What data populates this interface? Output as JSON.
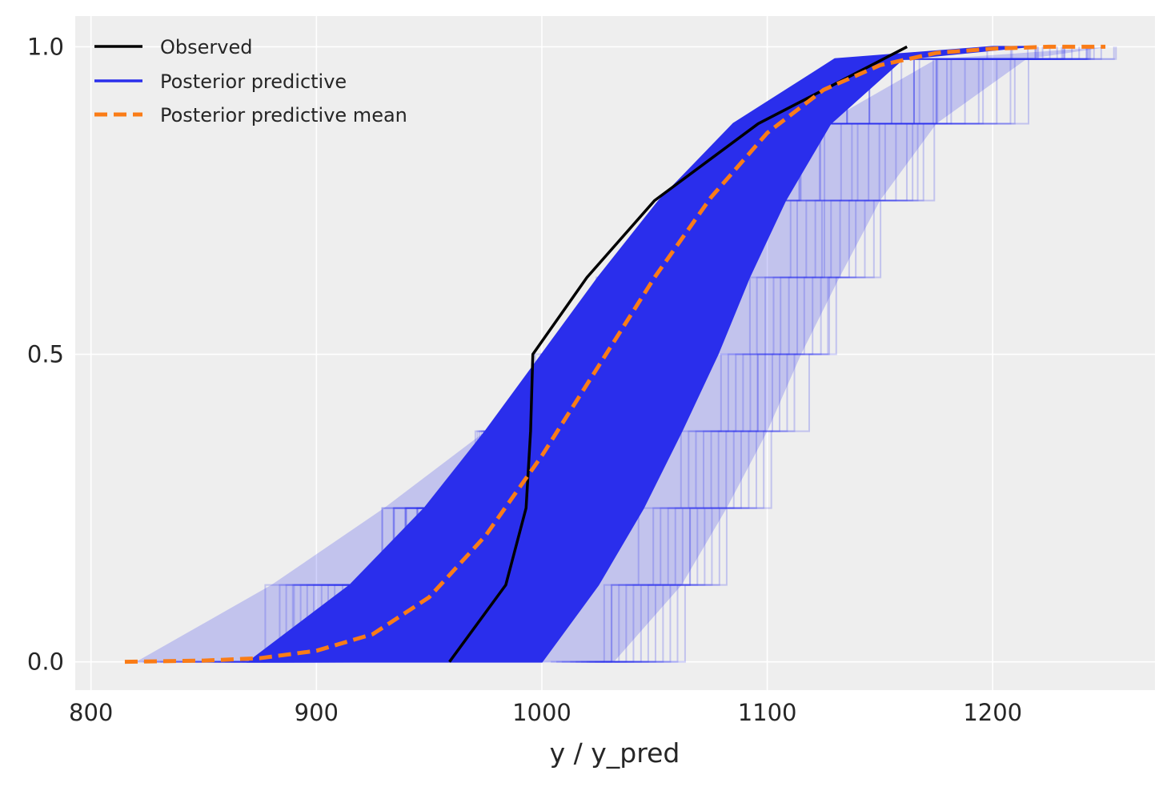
{
  "chart_data": {
    "type": "line",
    "title": "",
    "xlabel": "y / y_pred",
    "ylabel": "",
    "xlim": [
      793,
      1272
    ],
    "ylim": [
      -0.046,
      1.05
    ],
    "x_ticks": [
      800,
      900,
      1000,
      1100,
      1200
    ],
    "y_ticks": [
      0.0,
      0.5,
      1.0
    ],
    "x_tick_labels": [
      "800",
      "900",
      "1000",
      "1100",
      "1200"
    ],
    "y_tick_labels": [
      "0.0",
      "0.5",
      "1.0"
    ],
    "grid": true,
    "background_color": "#eeeeee",
    "legend": {
      "placement": "top-left",
      "entries": [
        {
          "label": "Observed",
          "color": "#000000",
          "style": "solid"
        },
        {
          "label": "Posterior predictive",
          "color": "#2a2eec",
          "style": "solid"
        },
        {
          "label": "Posterior predictive mean",
          "color": "#fa7c17",
          "style": "dashed"
        }
      ]
    },
    "series": [
      {
        "name": "Observed",
        "color": "#000000",
        "style": "solid",
        "x": [
          959,
          984,
          993,
          995,
          996,
          1020,
          1050,
          1096,
          1162
        ],
        "y": [
          0.0,
          0.125,
          0.25,
          0.375,
          0.5,
          0.625,
          0.75,
          0.875,
          1.0
        ]
      },
      {
        "name": "Posterior predictive mean",
        "color": "#fa7c17",
        "style": "dashed",
        "x": [
          815,
          850,
          875,
          900,
          925,
          950,
          975,
          1000,
          1025,
          1050,
          1075,
          1100,
          1125,
          1150,
          1175,
          1200,
          1225,
          1250
        ],
        "y": [
          0.0,
          0.002,
          0.006,
          0.018,
          0.045,
          0.105,
          0.205,
          0.335,
          0.48,
          0.625,
          0.755,
          0.86,
          0.93,
          0.97,
          0.99,
          0.997,
          1.0,
          1.0
        ]
      },
      {
        "name": "Posterior predictive",
        "color": "#2a2eec",
        "style": "solid",
        "envelope_low_x": [
          820,
          880,
          930,
          975,
          1015,
          1050,
          1085,
          1125,
          1175,
          1252
        ],
        "envelope_high_x": [
          1032,
          1062,
          1082,
          1100,
          1115,
          1132,
          1150,
          1175,
          1215,
          1252
        ],
        "envelope_y": [
          0.0,
          0.125,
          0.25,
          0.375,
          0.5,
          0.625,
          0.75,
          0.875,
          0.98,
          1.0
        ],
        "core_low_x": [
          870,
          915,
          948,
          975,
          1000,
          1025,
          1052,
          1085,
          1130,
          1200
        ],
        "core_high_x": [
          1000,
          1025,
          1045,
          1062,
          1078,
          1092,
          1108,
          1128,
          1160,
          1215
        ],
        "core_y": [
          0.0,
          0.125,
          0.25,
          0.375,
          0.5,
          0.625,
          0.75,
          0.875,
          0.98,
          1.0
        ]
      }
    ]
  }
}
